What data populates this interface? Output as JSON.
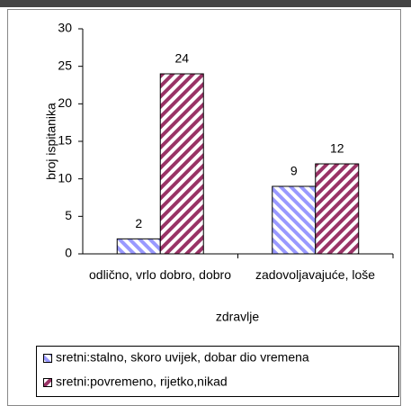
{
  "chart_data": {
    "type": "bar",
    "categories": [
      "odlično, vrlo dobro, dobro",
      "zadovoljavajuće, loše"
    ],
    "series": [
      {
        "name": "sretni:stalno, skoro uvijek, dobar dio vremena",
        "color": "#9999ff",
        "values": [
          2,
          9
        ]
      },
      {
        "name": "sretni:povremeno, rijetko,nikad",
        "color": "#993366",
        "values": [
          24,
          12
        ]
      }
    ],
    "xlabel": "zdravlje",
    "ylabel": "broj ispitanika",
    "ylim": [
      0,
      30
    ],
    "yticks": [
      0,
      5,
      10,
      15,
      20,
      25,
      30
    ],
    "legend": "bottom"
  }
}
